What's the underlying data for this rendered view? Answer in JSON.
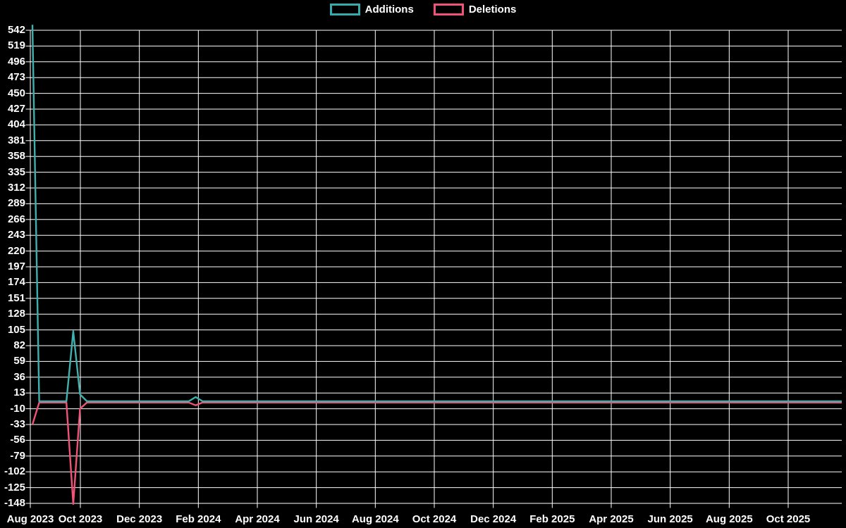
{
  "chart_data": {
    "type": "line",
    "title": "",
    "legend_position": "top-center",
    "background_color": "#000000",
    "grid_color": "#ffffff",
    "text_color": "#ffffff",
    "legend": [
      {
        "label": "Additions",
        "color": "#35abab"
      },
      {
        "label": "Deletions",
        "color": "#ef5378"
      }
    ],
    "y_axis": {
      "min": -148,
      "max": 542,
      "tick_step": 23,
      "tick_values": [
        542,
        519,
        496,
        473,
        450,
        427,
        404,
        381,
        358,
        335,
        312,
        289,
        266,
        243,
        220,
        197,
        174,
        151,
        128,
        105,
        82,
        59,
        36,
        13,
        -10,
        -33,
        -56,
        -79,
        -102,
        -125,
        -148
      ]
    },
    "x_axis": {
      "unit": "week",
      "start_week": "2023-08-13",
      "end_week": "2025-11-23",
      "tick_labels": [
        "Aug 2023",
        "Oct 2023",
        "Dec 2023",
        "Feb 2024",
        "Apr 2024",
        "Jun 2024",
        "Aug 2024",
        "Oct 2024",
        "Dec 2024",
        "Feb 2025",
        "Apr 2025",
        "Jun 2025",
        "Aug 2025",
        "Oct 2025"
      ]
    },
    "series": [
      {
        "name": "Additions",
        "color": "#3fb0ae",
        "points": [
          {
            "week": 0,
            "date": "2023-08-13",
            "value": 550
          },
          {
            "week": 1,
            "date": "2023-08-20",
            "value": 1
          },
          {
            "week": 5,
            "date": "2023-09-17",
            "value": 1
          },
          {
            "week": 6,
            "date": "2023-09-24",
            "value": 103
          },
          {
            "week": 7,
            "date": "2023-10-01",
            "value": 11
          },
          {
            "week": 8,
            "date": "2023-10-08",
            "value": 1
          },
          {
            "week": 23,
            "date": "2024-01-21",
            "value": 1
          },
          {
            "week": 24,
            "date": "2024-01-28",
            "value": 7
          },
          {
            "week": 25,
            "date": "2024-02-04",
            "value": 1
          },
          {
            "week": 119,
            "date": "2025-11-23",
            "value": 1
          }
        ]
      },
      {
        "name": "Deletions",
        "color": "#ef5378",
        "points": [
          {
            "week": 0,
            "date": "2023-08-13",
            "value": -33
          },
          {
            "week": 1,
            "date": "2023-08-20",
            "value": -1
          },
          {
            "week": 5,
            "date": "2023-09-17",
            "value": -1
          },
          {
            "week": 6,
            "date": "2023-09-24",
            "value": -149
          },
          {
            "week": 7,
            "date": "2023-10-01",
            "value": -10
          },
          {
            "week": 8,
            "date": "2023-10-08",
            "value": -1
          },
          {
            "week": 23,
            "date": "2024-01-21",
            "value": -1
          },
          {
            "week": 24,
            "date": "2024-01-28",
            "value": -5
          },
          {
            "week": 25,
            "date": "2024-02-04",
            "value": -1
          },
          {
            "week": 119,
            "date": "2025-11-23",
            "value": -1
          }
        ]
      }
    ]
  }
}
